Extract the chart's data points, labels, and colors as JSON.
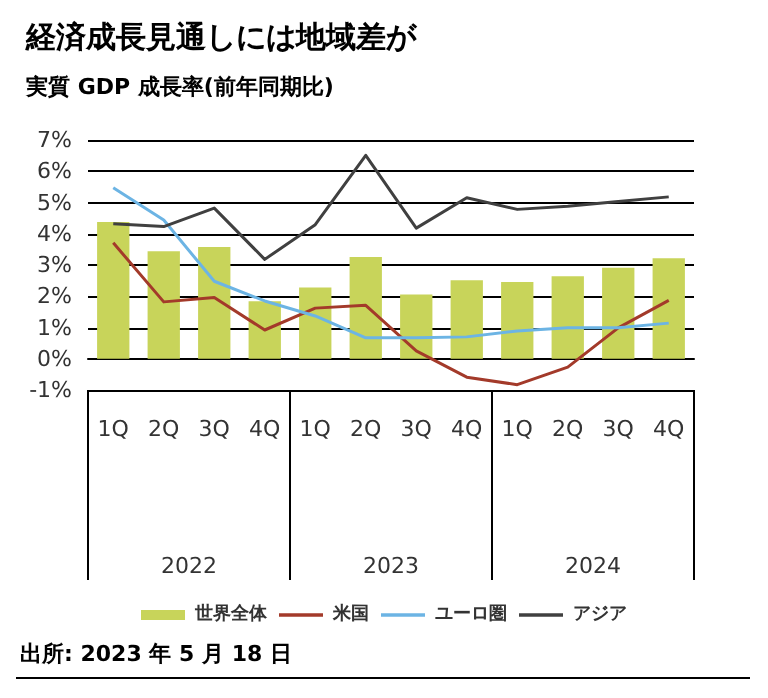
{
  "chart_data": {
    "type": "bar",
    "title": "経済成長見通しには地域差が",
    "subtitle": "実質 GDP 成長率(前年同期比)",
    "categories": [
      "1Q",
      "2Q",
      "3Q",
      "4Q",
      "1Q",
      "2Q",
      "3Q",
      "4Q",
      "1Q",
      "2Q",
      "3Q",
      "4Q"
    ],
    "series": [
      {
        "name": "世界全体",
        "color": "#c8d45a",
        "values": [
          4.38,
          3.44,
          3.58,
          1.84,
          2.28,
          3.26,
          2.06,
          2.51,
          2.46,
          2.64,
          2.91,
          3.22
        ]
      },
      {
        "name": "米国",
        "type": "line",
        "color": "#a33a2a",
        "values": [
          3.71,
          1.82,
          1.96,
          0.92,
          1.62,
          1.71,
          0.25,
          -0.59,
          -0.83,
          -0.27,
          0.99,
          1.87
        ]
      },
      {
        "name": "ユーロ圏",
        "type": "line",
        "color": "#6cb4e4",
        "values": [
          5.47,
          4.44,
          2.48,
          1.85,
          1.37,
          0.67,
          0.67,
          0.7,
          0.89,
          0.99,
          0.99,
          1.14
        ]
      },
      {
        "name": "アジア",
        "type": "line",
        "color": "#404040",
        "values": [
          4.32,
          4.23,
          4.82,
          3.18,
          4.29,
          6.51,
          4.18,
          5.15,
          4.78,
          4.88,
          5.03,
          5.18
        ]
      }
    ],
    "ylim": [
      -1,
      7
    ],
    "yticks": [
      {
        "value": -1,
        "label": "-1%"
      },
      {
        "value": 0,
        "label": "0%"
      },
      {
        "value": 1,
        "label": "1%"
      },
      {
        "value": 2,
        "label": "2%"
      },
      {
        "value": 3,
        "label": "3%"
      },
      {
        "value": 4,
        "label": "4%"
      },
      {
        "value": 5,
        "label": "5%"
      },
      {
        "value": 6,
        "label": "6%"
      },
      {
        "value": 7,
        "label": "7%"
      }
    ],
    "grid": "y",
    "legend": "bottom",
    "marker": "none",
    "line_style": "solid",
    "annotations": [
      "2022",
      "2023",
      "2024",
      "出所: 2023 年 5 月 18 日"
    ]
  }
}
